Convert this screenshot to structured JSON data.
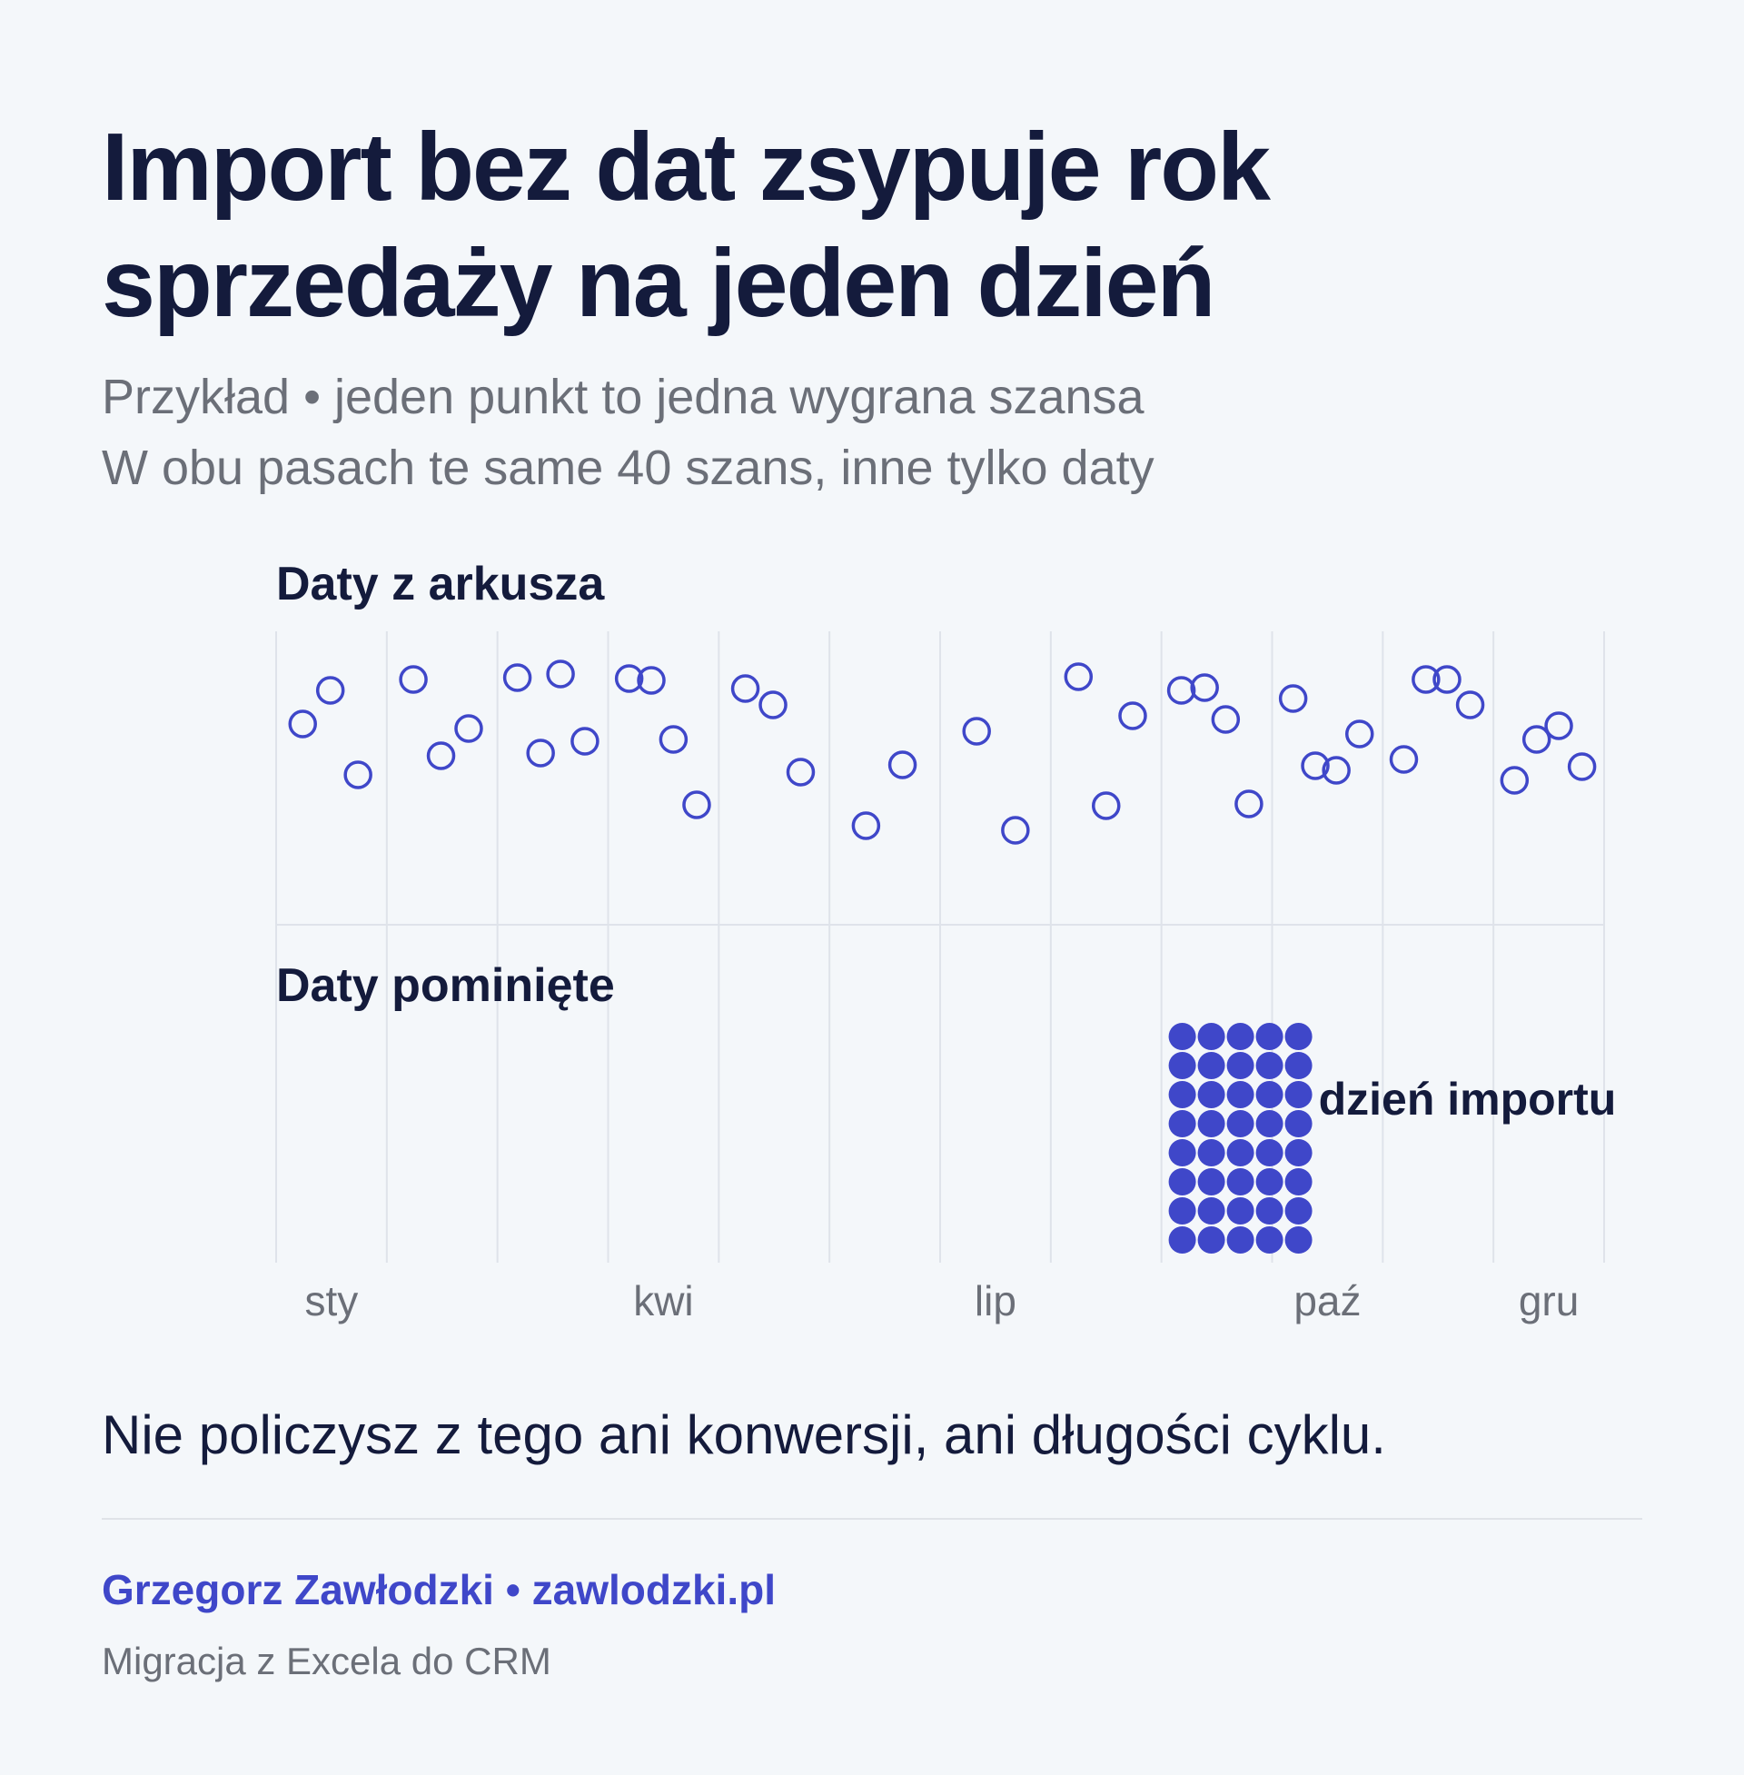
{
  "title": "Import bez dat zsypuje rok sprzedaży na jeden dzień",
  "subtitle": {
    "line1": "Przykład • jeden punkt to jedna wygrana szansa",
    "line2": "W obu pasach te same 40 szans, inne tylko daty"
  },
  "chart_data": {
    "type": "scatter",
    "x_tick_labels": [
      "sty",
      "kwi",
      "lip",
      "paź",
      "gru"
    ],
    "x_ticks_month_index": [
      0.5,
      3.5,
      6.5,
      9.5,
      11.5
    ],
    "grid": true,
    "point_color": "#3f47c9",
    "bands": [
      {
        "label": "Daty z arkusza",
        "marker": "open",
        "points_month_index": [
          0.24,
          0.49,
          0.74,
          1.24,
          1.49,
          1.74,
          2.18,
          2.39,
          2.57,
          2.79,
          3.19,
          3.39,
          3.59,
          3.8,
          4.24,
          4.49,
          4.74,
          5.33,
          5.66,
          6.33,
          6.68,
          7.25,
          7.5,
          7.74,
          8.18,
          8.39,
          8.58,
          8.79,
          9.19,
          9.39,
          9.58,
          9.79,
          10.19,
          10.39,
          10.58,
          10.79,
          11.19,
          11.39,
          11.59,
          11.8
        ],
        "count": 40
      },
      {
        "label": "Daty pominięte",
        "marker": "filled",
        "annotation": "dzień importu",
        "import_day_month_index": 8.5,
        "count": 40
      }
    ]
  },
  "note": "Nie policzysz z tego ani konwersji, ani długości cyklu.",
  "footer": {
    "author": "Grzegorz Zawłodzki • zawlodzki.pl",
    "tagline": "Migracja z Excela do CRM"
  }
}
